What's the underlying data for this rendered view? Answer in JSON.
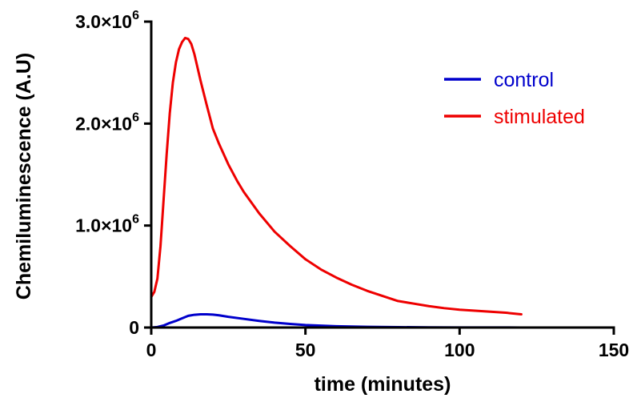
{
  "chart_data": {
    "type": "line",
    "title": "",
    "xlabel": "time (minutes)",
    "ylabel": "Chemiluminescence (A.U)",
    "xlim": [
      0,
      150
    ],
    "ylim": [
      0,
      3000000
    ],
    "x_ticks": [
      0,
      50,
      100,
      150
    ],
    "x_tick_labels": [
      "0",
      "50",
      "100",
      "150"
    ],
    "y_ticks": [
      0,
      1000000,
      2000000,
      3000000
    ],
    "y_tick_labels": [
      {
        "mantissa": "0",
        "exponent": ""
      },
      {
        "mantissa": "1.0×10",
        "exponent": "6"
      },
      {
        "mantissa": "2.0×10",
        "exponent": "6"
      },
      {
        "mantissa": "3.0×10",
        "exponent": "6"
      }
    ],
    "grid": false,
    "legend_position": "top-right",
    "series": [
      {
        "name": "control",
        "color": "#0000cc",
        "points": [
          [
            0,
            0
          ],
          [
            2,
            5000
          ],
          [
            4,
            20000
          ],
          [
            6,
            45000
          ],
          [
            8,
            65000
          ],
          [
            10,
            90000
          ],
          [
            12,
            115000
          ],
          [
            14,
            125000
          ],
          [
            16,
            130000
          ],
          [
            18,
            130000
          ],
          [
            20,
            127000
          ],
          [
            22,
            120000
          ],
          [
            25,
            105000
          ],
          [
            30,
            85000
          ],
          [
            35,
            65000
          ],
          [
            40,
            48000
          ],
          [
            45,
            35000
          ],
          [
            50,
            25000
          ],
          [
            60,
            13000
          ],
          [
            70,
            7000
          ],
          [
            80,
            4000
          ],
          [
            90,
            2000
          ],
          [
            100,
            1200
          ],
          [
            110,
            800
          ],
          [
            120,
            500
          ]
        ]
      },
      {
        "name": "stimulated",
        "color": "#ee0000",
        "points": [
          [
            0,
            300000
          ],
          [
            1,
            350000
          ],
          [
            2,
            480000
          ],
          [
            3,
            800000
          ],
          [
            4,
            1250000
          ],
          [
            5,
            1700000
          ],
          [
            6,
            2100000
          ],
          [
            7,
            2400000
          ],
          [
            8,
            2600000
          ],
          [
            9,
            2730000
          ],
          [
            10,
            2800000
          ],
          [
            11,
            2840000
          ],
          [
            12,
            2830000
          ],
          [
            13,
            2780000
          ],
          [
            14,
            2680000
          ],
          [
            15,
            2550000
          ],
          [
            16,
            2420000
          ],
          [
            18,
            2180000
          ],
          [
            20,
            1950000
          ],
          [
            22,
            1800000
          ],
          [
            25,
            1600000
          ],
          [
            28,
            1430000
          ],
          [
            30,
            1330000
          ],
          [
            35,
            1120000
          ],
          [
            40,
            940000
          ],
          [
            45,
            800000
          ],
          [
            50,
            670000
          ],
          [
            55,
            570000
          ],
          [
            60,
            490000
          ],
          [
            65,
            420000
          ],
          [
            70,
            360000
          ],
          [
            75,
            310000
          ],
          [
            80,
            260000
          ],
          [
            85,
            235000
          ],
          [
            90,
            210000
          ],
          [
            95,
            190000
          ],
          [
            100,
            175000
          ],
          [
            105,
            165000
          ],
          [
            110,
            155000
          ],
          [
            115,
            145000
          ],
          [
            120,
            130000
          ]
        ]
      }
    ]
  }
}
